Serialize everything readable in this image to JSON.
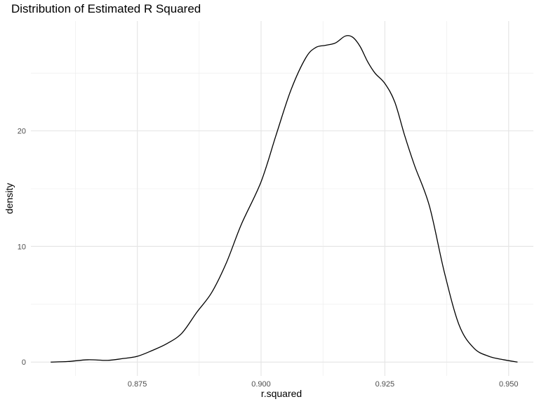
{
  "chart_data": {
    "type": "area",
    "title": "Distribution of Estimated R Squared",
    "xlabel": "r.squared",
    "ylabel": "density",
    "xlim": [
      0.8535,
      0.955
    ],
    "ylim": [
      -1.2,
      29.5
    ],
    "x_ticks": [
      {
        "value": 0.875,
        "label": "0.875"
      },
      {
        "value": 0.9,
        "label": "0.900"
      },
      {
        "value": 0.925,
        "label": "0.925"
      },
      {
        "value": 0.95,
        "label": "0.950"
      }
    ],
    "y_ticks": [
      {
        "value": 0,
        "label": "0"
      },
      {
        "value": 10,
        "label": "10"
      },
      {
        "value": 20,
        "label": "20"
      }
    ],
    "grid": true,
    "line_color": "#000000",
    "series": [
      {
        "x": [
          0.8575,
          0.861,
          0.865,
          0.869,
          0.872,
          0.875,
          0.878,
          0.881,
          0.884,
          0.887,
          0.89,
          0.893,
          0.896,
          0.9,
          0.903,
          0.906,
          0.909,
          0.911,
          0.913,
          0.915,
          0.917,
          0.9185,
          0.92,
          0.9215,
          0.923,
          0.925,
          0.927,
          0.929,
          0.931,
          0.934,
          0.937,
          0.94,
          0.943,
          0.946,
          0.949,
          0.9518
        ],
        "y": [
          0.0,
          0.05,
          0.2,
          0.15,
          0.3,
          0.5,
          1.0,
          1.6,
          2.5,
          4.3,
          6.0,
          8.6,
          11.9,
          15.6,
          19.6,
          23.5,
          26.3,
          27.2,
          27.4,
          27.6,
          28.2,
          28.1,
          27.3,
          26.0,
          25.0,
          24.1,
          22.5,
          19.6,
          17.0,
          13.5,
          7.8,
          3.2,
          1.2,
          0.5,
          0.2,
          0.0
        ]
      }
    ]
  }
}
